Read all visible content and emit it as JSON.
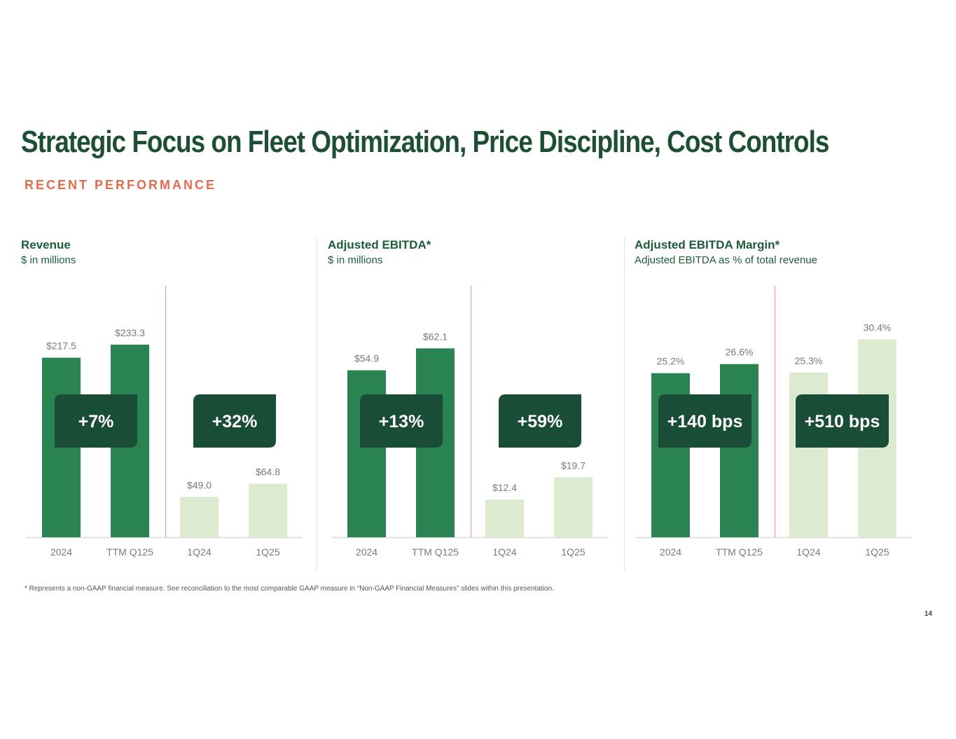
{
  "header": {
    "title": "Strategic Focus on Fleet Optimization, Price Discipline, Cost Controls",
    "subtitle": "RECENT PERFORMANCE"
  },
  "colors": {
    "dark_bar": "#2a8452",
    "light_bar": "#dcebd0",
    "badge": "#1a4d38",
    "divider": "#f0a090",
    "axis": "#e0e0e0",
    "title": "#1c4f33",
    "accent": "#e26a4e"
  },
  "chart_data": [
    {
      "type": "bar",
      "title": "Revenue",
      "subtitle": "$ in millions",
      "categories": [
        "2024",
        "TTM Q125",
        "1Q24",
        "1Q25"
      ],
      "values": [
        217.5,
        233.3,
        49.0,
        64.8
      ],
      "value_labels": [
        "$217.5",
        "$233.3",
        "$49.0",
        "$64.8"
      ],
      "ylim": [
        0,
        280
      ],
      "badges": [
        "+7%",
        "+32%"
      ]
    },
    {
      "type": "bar",
      "title": "Adjusted EBITDA*",
      "subtitle": "$ in millions",
      "categories": [
        "2024",
        "TTM Q125",
        "1Q24",
        "1Q25"
      ],
      "values": [
        54.9,
        62.1,
        12.4,
        19.7
      ],
      "value_labels": [
        "$54.9",
        "$62.1",
        "$12.4",
        "$19.7"
      ],
      "ylim": [
        0,
        76
      ],
      "badges": [
        "+13%",
        "+59%"
      ]
    },
    {
      "type": "bar",
      "title": "Adjusted EBITDA Margin*",
      "subtitle": "Adjusted EBITDA as % of total revenue",
      "categories": [
        "2024",
        "TTM Q125",
        "1Q24",
        "1Q25"
      ],
      "values": [
        25.2,
        26.6,
        25.3,
        30.4
      ],
      "value_labels": [
        "25.2%",
        "26.6%",
        "25.3%",
        "30.4%"
      ],
      "ylim": [
        0,
        35.5
      ],
      "badges": [
        "+140 bps",
        "+510 bps"
      ]
    }
  ],
  "footnote": "* Represents a non-GAAP financial measure. See reconciliation to the most comparable GAAP measure in “Non-GAAP Financial Measures” slides within this presentation.",
  "page_number": "14"
}
